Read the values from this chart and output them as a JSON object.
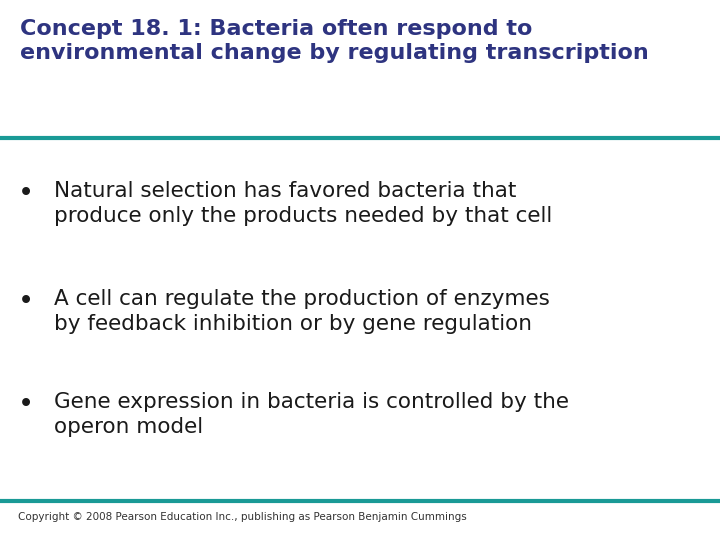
{
  "title_line1": "Concept 18. 1: Bacteria often respond to",
  "title_line2": "environmental change by regulating transcription",
  "title_color": "#2E3480",
  "title_fontsize": 16,
  "bullet_color": "#1a1a1a",
  "bullet_fontsize": 15.5,
  "bullets": [
    "Natural selection has favored bacteria that\nproduce only the products needed by that cell",
    "A cell can regulate the production of enzymes\nby feedback inhibition or by gene regulation",
    "Gene expression in bacteria is controlled by the\noperon model"
  ],
  "separator_color": "#1A9A96",
  "separator_linewidth": 3.0,
  "background_color": "#ffffff",
  "copyright_text": "Copyright © 2008 Pearson Education Inc., publishing as Pearson Benjamin Cummings",
  "copyright_fontsize": 7.5,
  "copyright_color": "#333333"
}
